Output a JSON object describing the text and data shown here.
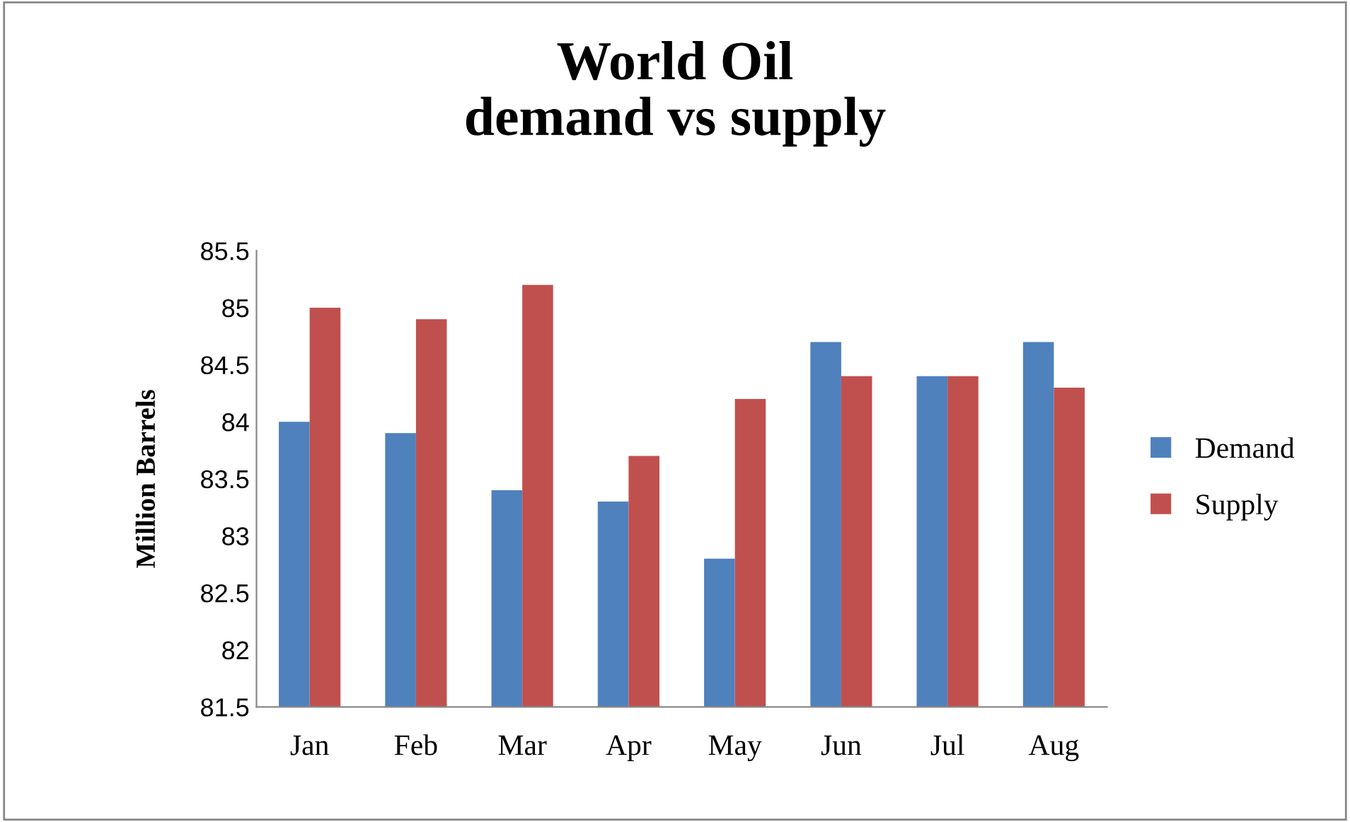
{
  "chart_data": {
    "type": "bar",
    "title": "World Oil\ndemand vs supply",
    "ylabel": "Million Barrels",
    "categories": [
      "Jan",
      "Feb",
      "Mar",
      "Apr",
      "May",
      "Jun",
      "Jul",
      "Aug"
    ],
    "series": [
      {
        "name": "Demand",
        "color": "#4f81bd",
        "values": [
          84.0,
          83.9,
          83.4,
          83.3,
          82.8,
          84.7,
          84.4,
          84.7
        ]
      },
      {
        "name": "Supply",
        "color": "#c0504d",
        "values": [
          85.0,
          84.9,
          85.2,
          83.7,
          84.2,
          84.4,
          84.4,
          84.3
        ]
      }
    ],
    "ylim": [
      81.5,
      85.5
    ],
    "yticks": [
      81.5,
      82,
      82.5,
      83,
      83.5,
      84,
      84.5,
      85,
      85.5
    ],
    "grid": false,
    "legend": "right"
  }
}
